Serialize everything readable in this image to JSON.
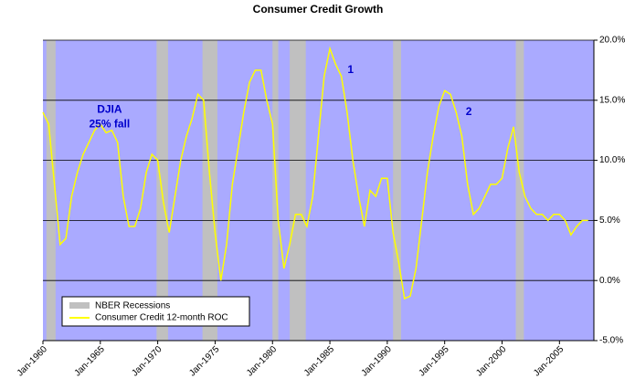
{
  "chart_data": {
    "type": "line",
    "title": "Consumer Credit Growth",
    "x": [
      1960.0,
      1960.5,
      1961.0,
      1961.5,
      1962.0,
      1962.5,
      1963.0,
      1963.5,
      1964.0,
      1964.5,
      1965.0,
      1965.5,
      1966.0,
      1966.5,
      1967.0,
      1967.5,
      1968.0,
      1968.5,
      1969.0,
      1969.5,
      1970.0,
      1970.5,
      1971.0,
      1971.5,
      1972.0,
      1972.5,
      1973.0,
      1973.5,
      1974.0,
      1974.5,
      1975.0,
      1975.5,
      1976.0,
      1976.5,
      1977.0,
      1977.5,
      1978.0,
      1978.5,
      1979.0,
      1979.5,
      1980.0,
      1980.5,
      1981.0,
      1981.5,
      1982.0,
      1982.5,
      1983.0,
      1983.5,
      1984.0,
      1984.5,
      1985.0,
      1985.5,
      1986.0,
      1986.5,
      1987.0,
      1987.5,
      1988.0,
      1988.5,
      1989.0,
      1989.5,
      1990.0,
      1990.5,
      1991.0,
      1991.5,
      1992.0,
      1992.5,
      1993.0,
      1993.5,
      1994.0,
      1994.5,
      1995.0,
      1995.5,
      1996.0,
      1996.5,
      1997.0,
      1997.5,
      1998.0,
      1998.5,
      1999.0,
      1999.5,
      2000.0,
      2000.5,
      2001.0,
      2001.5,
      2002.0,
      2002.5,
      2003.0,
      2003.5,
      2004.0,
      2004.5,
      2005.0,
      2005.5,
      2006.0,
      2006.5,
      2007.0,
      2007.5
    ],
    "series": [
      {
        "name": "Consumer Credit 12-month ROC",
        "color": "#ffff00",
        "values": [
          14.0,
          13,
          8,
          3,
          3.5,
          7,
          9,
          10.5,
          11.5,
          12.5,
          13,
          12.3,
          12.5,
          11.5,
          7,
          4.5,
          4.5,
          6,
          9,
          10.5,
          10,
          6.5,
          4,
          7,
          10,
          12,
          13.5,
          15.5,
          15,
          9,
          4,
          0,
          3,
          8,
          11,
          14,
          16.5,
          17.5,
          17.5,
          15,
          13,
          5,
          1,
          3,
          5.5,
          5.5,
          4.5,
          7,
          12,
          17,
          19.3,
          18,
          17,
          14,
          10,
          7,
          4.5,
          7.5,
          7,
          8.5,
          8.5,
          4,
          1.5,
          -1.5,
          -1.3,
          1,
          5,
          9,
          12,
          14.5,
          15.8,
          15.5,
          14,
          12,
          8,
          5.5,
          6,
          7,
          8,
          8,
          8.5,
          11,
          12.8,
          9,
          7,
          6,
          5.5,
          5.5,
          5,
          5.5,
          5.5,
          5,
          3.8,
          4.5,
          5,
          5
        ]
      }
    ],
    "recessions": {
      "name": "NBER Recessions",
      "color": "#c0c0c0",
      "spans": [
        [
          1960.3,
          1961.1
        ],
        [
          1969.9,
          1970.9
        ],
        [
          1973.9,
          1975.2
        ],
        [
          1980.0,
          1980.5
        ],
        [
          1981.5,
          1982.9
        ],
        [
          1990.5,
          1991.2
        ],
        [
          2001.2,
          2001.9
        ]
      ]
    },
    "xlim": [
      1960,
      2008
    ],
    "xticks": [
      {
        "value": 1960,
        "label": "Jan-1960"
      },
      {
        "value": 1965,
        "label": "Jan-1965"
      },
      {
        "value": 1970,
        "label": "Jan-1970"
      },
      {
        "value": 1975,
        "label": "Jan-1975"
      },
      {
        "value": 1980,
        "label": "Jan-1980"
      },
      {
        "value": 1985,
        "label": "Jan-1985"
      },
      {
        "value": 1990,
        "label": "Jan-1990"
      },
      {
        "value": 1995,
        "label": "Jan-1995"
      },
      {
        "value": 2000,
        "label": "Jan-2000"
      },
      {
        "value": 2005,
        "label": "Jan-2005"
      }
    ],
    "ylim": [
      -5,
      20
    ],
    "yticks": [
      {
        "value": -5,
        "label": "-5.0%"
      },
      {
        "value": 0,
        "label": "0.0%"
      },
      {
        "value": 5,
        "label": "5.0%"
      },
      {
        "value": 10,
        "label": "10.0%"
      },
      {
        "value": 15,
        "label": "15.0%"
      },
      {
        "value": 20,
        "label": "20.0%"
      }
    ],
    "grid": true,
    "legend": "lower left",
    "annotations": [
      {
        "text": "DJIA",
        "x": 1965.8,
        "y": 14.2
      },
      {
        "text": "25% fall",
        "x": 1965.8,
        "y": 13.0
      },
      {
        "text": "1",
        "x": 1986.8,
        "y": 17.5
      },
      {
        "text": "2",
        "x": 1997.1,
        "y": 14.0
      }
    ]
  }
}
